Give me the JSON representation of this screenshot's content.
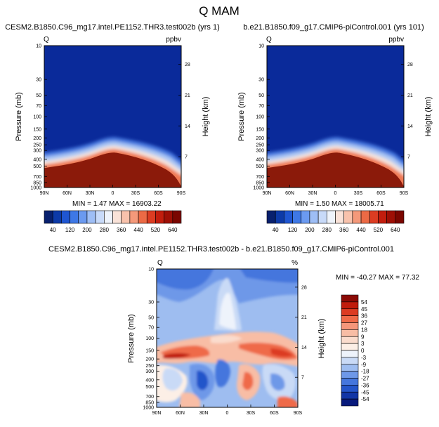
{
  "page_title": "Q MAM",
  "colors": {
    "deep_blue": "#0a2a9a",
    "ice": "#e8f1ff",
    "dark_red": "#8b1a0a",
    "text": "#000000"
  },
  "colorbar_abs": {
    "labels": [
      "40",
      "120",
      "200",
      "280",
      "360",
      "440",
      "520",
      "640"
    ],
    "colors": [
      "#08206e",
      "#0d3aa8",
      "#1f56d2",
      "#3e78e6",
      "#6b9af0",
      "#9ebef6",
      "#c8daf9",
      "#eef3fb",
      "#f9e2d8",
      "#f8c2ac",
      "#f4997a",
      "#ec6a45",
      "#dc3c22",
      "#c21d0d",
      "#9e0f05",
      "#7a0600"
    ]
  },
  "colorbar_diff": {
    "labels": [
      "54",
      "45",
      "36",
      "27",
      "18",
      "9",
      "3",
      "0",
      "-3",
      "-9",
      "-18",
      "-27",
      "-36",
      "-45",
      "-54"
    ],
    "colors": [
      "#8b0a05",
      "#c01b0c",
      "#dc3b22",
      "#ef6a48",
      "#f5967a",
      "#f8bda5",
      "#fadccd",
      "#fcefe6",
      "#eef3fb",
      "#c9daf6",
      "#9ebdf0",
      "#6e98e8",
      "#4576dd",
      "#2455ca",
      "#1135a6",
      "#081a7c"
    ]
  },
  "chart_data": [
    {
      "type": "heatmap",
      "title": "CESM2.B1850.C96_mg17.intel.PE1152.THR3.test002b (yrs 1)",
      "left_string": "Q",
      "right_string": "ppbv",
      "stats": "MIN =  1.47   MAX = 16903.22",
      "ylabel": "Pressure (mb)",
      "ylabel_right": "Height (km)",
      "xticks": [
        "90N",
        "60N",
        "30N",
        "0",
        "30S",
        "60S",
        "90S"
      ],
      "pressure_ticks": [
        "10",
        "30",
        "50",
        "70",
        "100",
        "150",
        "200",
        "250",
        "300",
        "400",
        "500",
        "700",
        "850",
        "1000"
      ],
      "height_ticks": [
        "28",
        "21",
        "14",
        "7"
      ],
      "ylim_mb": [
        10,
        1000
      ],
      "color_levels": [
        40,
        80,
        120,
        160,
        200,
        240,
        280,
        320,
        360,
        400,
        440,
        480,
        520,
        560,
        600,
        640
      ]
    },
    {
      "type": "heatmap",
      "title": "b.e21.B1850.f09_g17.CMIP6-piControl.001 (yrs 101)",
      "left_string": "Q",
      "right_string": "ppbv",
      "stats": "MIN =  1.50   MAX = 18005.71",
      "ylabel": "Pressure (mb)",
      "ylabel_right": "Height (km)",
      "xticks": [
        "90N",
        "60N",
        "30N",
        "0",
        "30S",
        "60S",
        "90S"
      ],
      "pressure_ticks": [
        "10",
        "30",
        "50",
        "70",
        "100",
        "150",
        "200",
        "250",
        "300",
        "400",
        "500",
        "700",
        "850",
        "1000"
      ],
      "height_ticks": [
        "28",
        "21",
        "14",
        "7"
      ],
      "ylim_mb": [
        10,
        1000
      ],
      "color_levels": [
        40,
        80,
        120,
        160,
        200,
        240,
        280,
        320,
        360,
        400,
        440,
        480,
        520,
        560,
        600,
        640
      ]
    },
    {
      "type": "heatmap",
      "title": "CESM2.B1850.C96_mg17.intel.PE1152.THR3.test002b - b.e21.B1850.f09_g17.CMIP6-piControl.001",
      "left_string": "Q",
      "right_string": "%",
      "stats": "MIN = -40.27   MAX =  77.32",
      "ylabel": "Pressure (mb)",
      "ylabel_right": "Height (km)",
      "xticks": [
        "90N",
        "60N",
        "30N",
        "0",
        "30S",
        "60S",
        "90S"
      ],
      "pressure_ticks": [
        "10",
        "30",
        "50",
        "70",
        "100",
        "150",
        "200",
        "250",
        "300",
        "400",
        "500",
        "700",
        "850",
        "1000"
      ],
      "height_ticks": [
        "28",
        "21",
        "14",
        "7"
      ],
      "ylim_mb": [
        10,
        1000
      ],
      "color_levels": [
        -54,
        -45,
        -36,
        -27,
        -18,
        -9,
        -3,
        0,
        3,
        9,
        18,
        27,
        36,
        45,
        54
      ]
    }
  ]
}
